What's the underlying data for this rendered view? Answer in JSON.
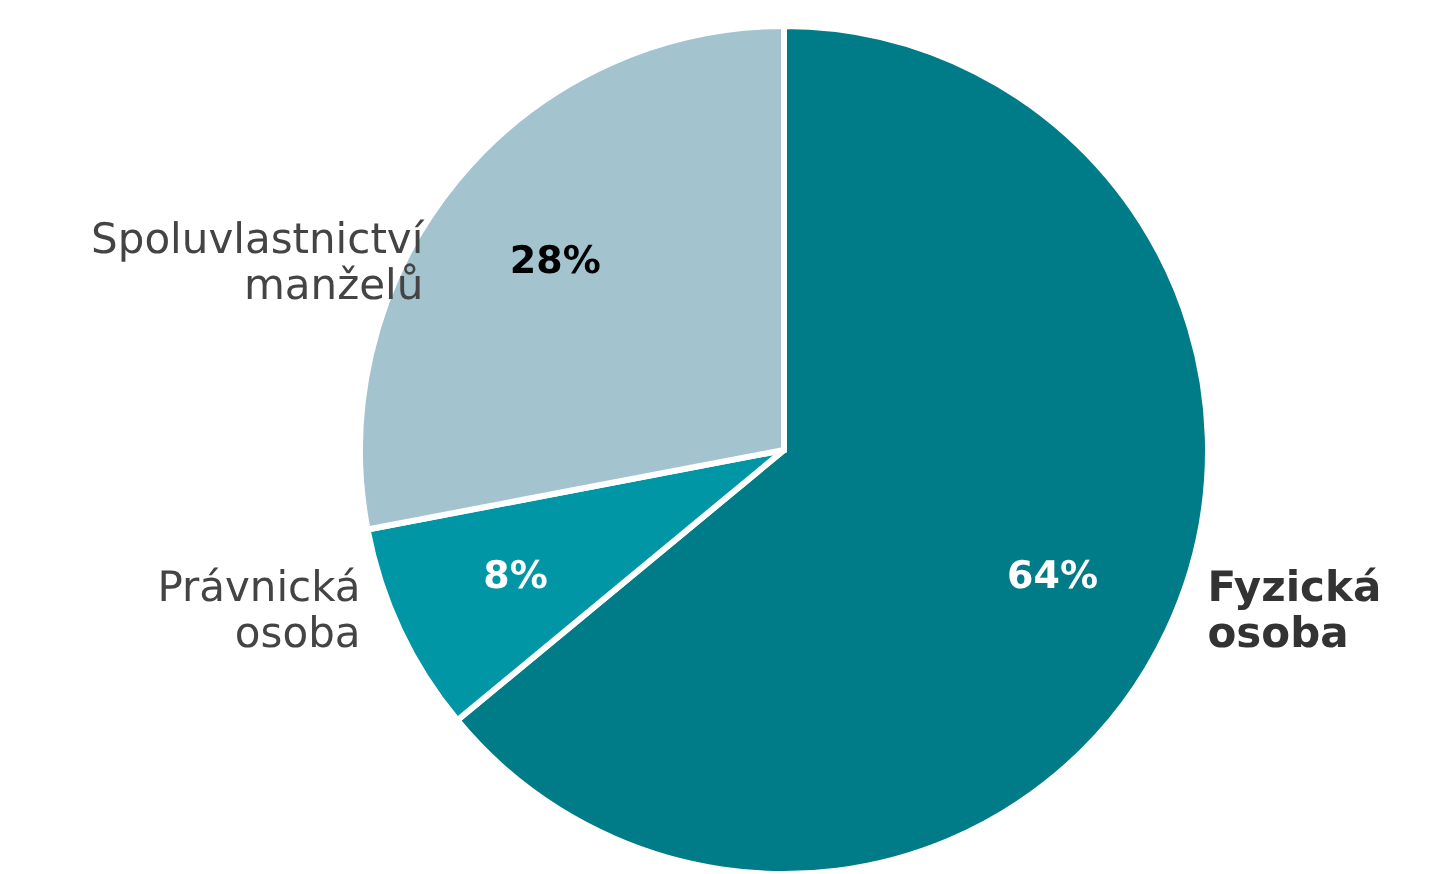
{
  "chart_data": {
    "type": "pie",
    "categories": [
      "Fyzická osoba",
      "Právnická osoba",
      "Spoluvlastnictví manželů"
    ],
    "values": [
      64,
      8,
      28
    ],
    "colors": [
      "#007b88",
      "#0096a6",
      "#a3c4ce"
    ],
    "value_labels": [
      "64%",
      "8%",
      "28%"
    ]
  }
}
